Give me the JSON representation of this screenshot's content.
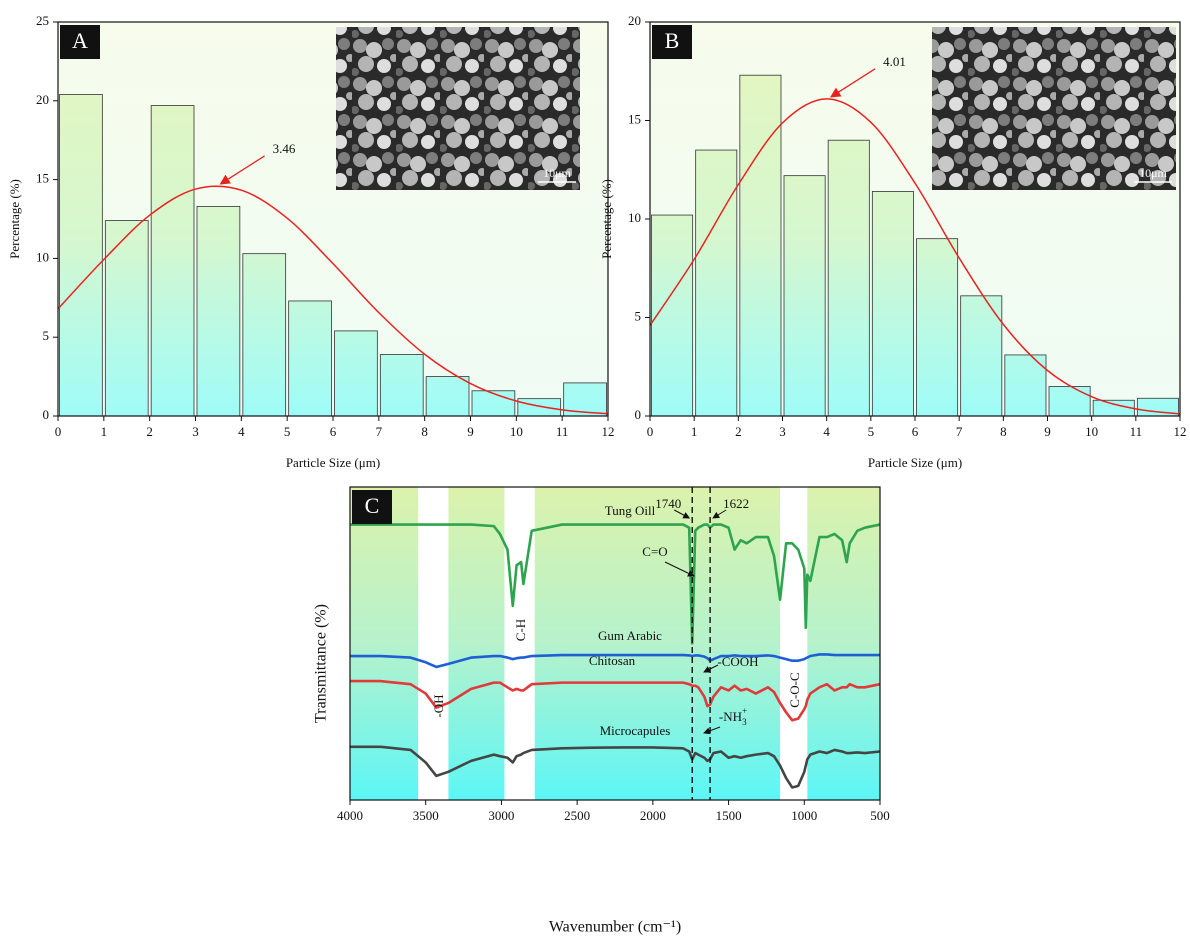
{
  "chart_data": [
    {
      "type": "histogram",
      "panel": "A",
      "bins": [
        0,
        1,
        2,
        3,
        4,
        5,
        6,
        7,
        8,
        9,
        10,
        11,
        12
      ],
      "values": [
        20.4,
        12.4,
        19.7,
        13.3,
        10.3,
        7.3,
        5.4,
        3.9,
        2.5,
        1.6,
        1.1,
        2.1
      ],
      "fit": {
        "x": [
          0,
          1,
          2,
          3,
          4,
          5,
          6,
          7,
          8,
          9,
          10,
          11,
          12
        ],
        "values": [
          6.8,
          9.93,
          12.74,
          14.4,
          14.33,
          12.55,
          9.67,
          6.56,
          3.92,
          2.06,
          0.95,
          0.39,
          0.14
        ],
        "color": "#e8231f"
      },
      "annotation": "3.46",
      "annotation_x": 3.46,
      "annotation_y": 14.6,
      "xlim": [
        0,
        12
      ],
      "xticks": [
        0,
        1,
        2,
        3,
        4,
        5,
        6,
        7,
        8,
        9,
        10,
        11,
        12
      ],
      "ylim": [
        0,
        25
      ],
      "yticks": [
        0,
        5,
        10,
        15,
        20,
        25
      ],
      "xlabel": "Particle Size (μm)",
      "ylabel": "Percentage (%)",
      "inset_label": "10μm"
    },
    {
      "type": "histogram",
      "panel": "B",
      "bins": [
        0,
        1,
        2,
        3,
        4,
        5,
        6,
        7,
        8,
        9,
        10,
        11,
        12
      ],
      "values": [
        10.2,
        13.5,
        17.3,
        12.2,
        14.0,
        11.4,
        9.0,
        6.1,
        3.1,
        1.5,
        0.8,
        0.9
      ],
      "fit": {
        "x": [
          0,
          1,
          2,
          3,
          4,
          5,
          6,
          7,
          8,
          9,
          10,
          11,
          12
        ],
        "values": [
          4.6,
          7.95,
          11.75,
          14.88,
          16.1,
          14.91,
          11.82,
          8.02,
          4.65,
          2.31,
          0.98,
          0.36,
          0.11
        ],
        "color": "#e8231f"
      },
      "annotation": "4.01",
      "annotation_x": 4.01,
      "annotation_y": 16.1,
      "xlim": [
        0,
        12
      ],
      "xticks": [
        0,
        1,
        2,
        3,
        4,
        5,
        6,
        7,
        8,
        9,
        10,
        11,
        12
      ],
      "ylim": [
        0,
        20
      ],
      "yticks": [
        0,
        5,
        10,
        15,
        20
      ],
      "xlabel": "Particle Size (μm)",
      "ylabel": "Percentage (%)",
      "inset_label": "10μm"
    },
    {
      "type": "line",
      "panel": "C",
      "x": [
        4000,
        3800,
        3600,
        3500,
        3430,
        3350,
        3200,
        3050,
        3010,
        2960,
        2925,
        2900,
        2870,
        2855,
        2800,
        2600,
        2400,
        2200,
        2000,
        1800,
        1760,
        1740,
        1720,
        1700,
        1660,
        1640,
        1622,
        1600,
        1550,
        1500,
        1460,
        1420,
        1380,
        1320,
        1240,
        1200,
        1160,
        1120,
        1080,
        1040,
        1000,
        990,
        980,
        960,
        900,
        850,
        800,
        750,
        720,
        700,
        650,
        600,
        500
      ],
      "series": [
        {
          "name": "Tung Oill",
          "color": "#2ea44f",
          "values": [
            88,
            88,
            88,
            88,
            88,
            88,
            88,
            87.5,
            85,
            80,
            62,
            75,
            76,
            69,
            86,
            88,
            88,
            88,
            88,
            88,
            87,
            50,
            86,
            87,
            88,
            88,
            87,
            88,
            88,
            87,
            80,
            83,
            82,
            84,
            84,
            78,
            64,
            82,
            82,
            80,
            74,
            55,
            72,
            70,
            84,
            84,
            85,
            83,
            76,
            82,
            86,
            87,
            88
          ]
        },
        {
          "name": "Gum Arabic",
          "color": "#1f5fd6",
          "values": [
            46,
            46,
            45.5,
            44,
            42.5,
            43.5,
            45.5,
            46,
            46,
            45.5,
            45,
            45.3,
            45.5,
            45.5,
            46,
            46.3,
            46.3,
            46.3,
            46.3,
            46.3,
            46.2,
            46,
            46.2,
            46.2,
            45.8,
            45.3,
            44.5,
            45,
            46,
            46,
            46.2,
            46,
            46,
            46,
            46.2,
            46,
            45.5,
            45,
            44.5,
            44.5,
            45,
            45.3,
            45.5,
            46,
            46.5,
            46.5,
            46.3,
            46.3,
            46.3,
            46.3,
            46.3,
            46.3,
            46.3
          ]
        },
        {
          "name": "Chitosan",
          "color": "#e03a3a",
          "values": [
            38,
            38,
            37,
            34,
            29.5,
            31,
            35.5,
            37.5,
            37.5,
            36,
            35,
            35.5,
            35,
            35,
            37,
            37.5,
            37.5,
            37.5,
            37.5,
            37.5,
            37,
            36.5,
            36.5,
            36,
            33,
            30,
            30.5,
            33,
            36,
            35,
            36.5,
            35,
            35.5,
            34,
            36,
            34.5,
            31,
            28,
            25.5,
            26,
            29,
            30,
            32,
            34,
            36,
            37,
            35,
            36,
            36,
            37,
            36,
            36,
            37
          ]
        },
        {
          "name": "Microcapules",
          "color": "#454545",
          "values": [
            17,
            17,
            16,
            12,
            7.7,
            9,
            12.5,
            14.5,
            14,
            13.5,
            12,
            14,
            14.5,
            15,
            16,
            16.5,
            16.7,
            16.8,
            16.8,
            16.5,
            15.5,
            13,
            15,
            14.5,
            13.5,
            12.5,
            13,
            15,
            15.5,
            13.5,
            14,
            13.5,
            14,
            14.5,
            15,
            14,
            11,
            7,
            4,
            4.5,
            9,
            11,
            13,
            14.5,
            15.5,
            15,
            16,
            15.5,
            15,
            15,
            15.2,
            15,
            15.5
          ]
        }
      ],
      "bands": [
        [
          3550,
          3350
        ],
        [
          2980,
          2780
        ],
        [
          1160,
          980
        ]
      ],
      "reference_lines": [
        1740,
        1622
      ],
      "annotations": [
        "C=O",
        "C-H",
        "-COOH",
        {
          "text": "-NH",
          "sub": "3",
          "sup": "+"
        },
        "-OH",
        "C-O-C"
      ],
      "xlim": [
        4000,
        500
      ],
      "xticks": [
        4000,
        3500,
        3000,
        2500,
        2000,
        1500,
        1000,
        500
      ],
      "ylim": [
        0,
        100
      ],
      "xlabel": "Wavenumber (cm⁻¹)",
      "ylabel": "Transmittance (%)"
    }
  ]
}
